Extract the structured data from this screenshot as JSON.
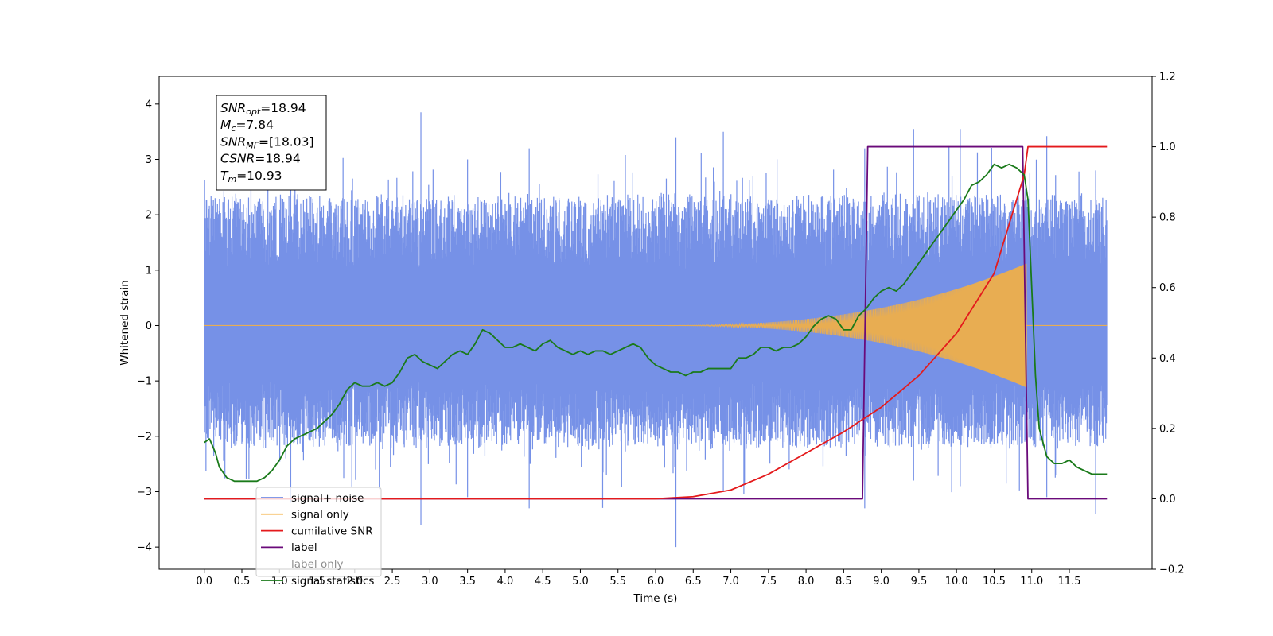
{
  "chart_data": {
    "type": "line",
    "xlabel": "Time (s)",
    "ylabel": "Whitened strain",
    "x_ticks": [
      "0.0",
      "0.5",
      "1.0",
      "1.5",
      "2.0",
      "2.5",
      "3.0",
      "3.5",
      "4.0",
      "4.5",
      "5.0",
      "5.5",
      "6.0",
      "6.5",
      "7.0",
      "7.5",
      "8.0",
      "8.5",
      "9.0",
      "9.5",
      "10.0",
      "10.5",
      "11.0",
      "11.5"
    ],
    "xlim": [
      -0.6,
      12.6
    ],
    "ylim_left": [
      -4.4,
      4.5
    ],
    "y_ticks_left": [
      "4",
      "3",
      "2",
      "1",
      "0",
      "−1",
      "−2",
      "−3",
      "−4"
    ],
    "ylim_right": [
      -0.2,
      1.2
    ],
    "y_ticks_right": [
      "1.2",
      "1.0",
      "0.8",
      "0.6",
      "0.4",
      "0.2",
      "0.0",
      "−0.2"
    ],
    "grid": false,
    "legend_position": "lower-left",
    "annotation": {
      "snr_opt": {
        "name": "SNR",
        "sub": "opt",
        "value": "=18.94"
      },
      "mc": {
        "name": "M",
        "sub": "c",
        "value": "=7.84"
      },
      "snr_mf": {
        "name": "SNR",
        "sub": "MF",
        "value": "=[18.03]"
      },
      "csnr": {
        "name": "CSNR",
        "sub": "",
        "value": "=18.94"
      },
      "tm": {
        "name": "T",
        "sub": "m",
        "value": "=10.93"
      }
    },
    "series": [
      {
        "name": "signal+ noise",
        "axis": "left",
        "color": "#6f8be6",
        "style": "dense noise band approx. ±2.3, spikes to +3.9 / −4.0, from 0.0 to 12.0 s"
      },
      {
        "name": "signal only",
        "axis": "left",
        "color": "#f5b041",
        "style": "chirp, envelope grows from 6.0 s to peak ~1.1 at 10.93 s, zero after"
      },
      {
        "name": "cumilative SNR",
        "axis": "right",
        "color": "#e41a1c",
        "x": [
          0.0,
          6.0,
          6.5,
          7.0,
          7.5,
          8.0,
          8.5,
          9.0,
          9.5,
          10.0,
          10.5,
          10.9,
          10.95,
          12.0
        ],
        "y": [
          0.0,
          0.0,
          0.006,
          0.025,
          0.07,
          0.13,
          0.19,
          0.26,
          0.35,
          0.47,
          0.64,
          0.92,
          1.0,
          1.0
        ]
      },
      {
        "name": "label",
        "axis": "right",
        "color": "#6a0a7a",
        "x": [
          0.0,
          8.75,
          8.82,
          10.88,
          10.95,
          12.0
        ],
        "y": [
          0.0,
          0.0,
          1.0,
          1.0,
          0.0,
          0.0
        ]
      },
      {
        "name": "label only",
        "axis": "right",
        "color": "#6a0a7a",
        "hidden": true,
        "x": [],
        "y": []
      },
      {
        "name": "signal statistics",
        "axis": "right",
        "color": "#1a7a1a",
        "x": [
          0.0,
          0.07,
          0.15,
          0.2,
          0.3,
          0.4,
          0.5,
          0.6,
          0.7,
          0.8,
          0.9,
          1.0,
          1.1,
          1.2,
          1.3,
          1.4,
          1.5,
          1.6,
          1.7,
          1.8,
          1.9,
          2.0,
          2.1,
          2.2,
          2.3,
          2.4,
          2.5,
          2.6,
          2.7,
          2.8,
          2.9,
          3.0,
          3.1,
          3.2,
          3.3,
          3.4,
          3.5,
          3.6,
          3.7,
          3.8,
          3.9,
          4.0,
          4.1,
          4.2,
          4.3,
          4.4,
          4.5,
          4.6,
          4.7,
          4.8,
          4.9,
          5.0,
          5.1,
          5.2,
          5.3,
          5.4,
          5.5,
          5.6,
          5.7,
          5.8,
          5.9,
          6.0,
          6.1,
          6.2,
          6.3,
          6.4,
          6.5,
          6.6,
          6.7,
          6.8,
          6.9,
          7.0,
          7.1,
          7.2,
          7.3,
          7.4,
          7.5,
          7.6,
          7.7,
          7.8,
          7.9,
          8.0,
          8.1,
          8.2,
          8.3,
          8.4,
          8.5,
          8.6,
          8.7,
          8.8,
          8.9,
          9.0,
          9.1,
          9.2,
          9.3,
          9.4,
          9.5,
          9.6,
          9.7,
          9.8,
          9.9,
          10.0,
          10.1,
          10.2,
          10.3,
          10.4,
          10.5,
          10.6,
          10.7,
          10.8,
          10.9,
          10.95,
          11.0,
          11.05,
          11.1,
          11.2,
          11.3,
          11.4,
          11.5,
          11.6,
          11.7,
          11.8,
          11.9,
          12.0
        ],
        "y": [
          0.16,
          0.17,
          0.13,
          0.09,
          0.06,
          0.05,
          0.05,
          0.05,
          0.05,
          0.06,
          0.08,
          0.11,
          0.15,
          0.17,
          0.18,
          0.19,
          0.2,
          0.22,
          0.24,
          0.27,
          0.31,
          0.33,
          0.32,
          0.32,
          0.33,
          0.32,
          0.33,
          0.36,
          0.4,
          0.41,
          0.39,
          0.38,
          0.37,
          0.39,
          0.41,
          0.42,
          0.41,
          0.44,
          0.48,
          0.47,
          0.45,
          0.43,
          0.43,
          0.44,
          0.43,
          0.42,
          0.44,
          0.45,
          0.43,
          0.42,
          0.41,
          0.42,
          0.41,
          0.42,
          0.42,
          0.41,
          0.42,
          0.43,
          0.44,
          0.43,
          0.4,
          0.38,
          0.37,
          0.36,
          0.36,
          0.35,
          0.36,
          0.36,
          0.37,
          0.37,
          0.37,
          0.37,
          0.4,
          0.4,
          0.41,
          0.43,
          0.43,
          0.42,
          0.43,
          0.43,
          0.44,
          0.46,
          0.49,
          0.51,
          0.52,
          0.51,
          0.48,
          0.48,
          0.52,
          0.54,
          0.57,
          0.59,
          0.6,
          0.59,
          0.61,
          0.64,
          0.67,
          0.7,
          0.73,
          0.76,
          0.79,
          0.82,
          0.85,
          0.89,
          0.9,
          0.92,
          0.95,
          0.94,
          0.95,
          0.94,
          0.92,
          0.85,
          0.6,
          0.35,
          0.2,
          0.12,
          0.1,
          0.1,
          0.11,
          0.09,
          0.08,
          0.07,
          0.07,
          0.07
        ]
      }
    ]
  }
}
